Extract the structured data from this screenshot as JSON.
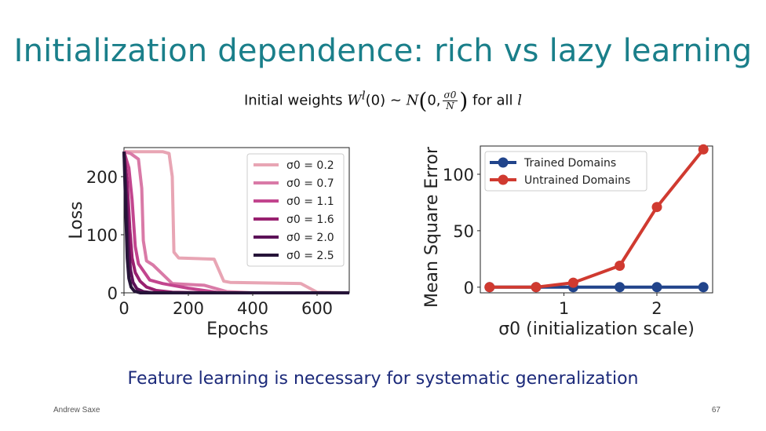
{
  "slide": {
    "title": "Initialization dependence: rich vs lazy learning",
    "formula_prefix": "Initial weights ",
    "formula_W": "W",
    "formula_sup": "l",
    "formula_arg": "(0) ~ ",
    "formula_N": "N",
    "formula_frac_num": "σ0",
    "formula_frac_den": "N",
    "formula_suffix": " for all ",
    "formula_l": "l",
    "subtitle": "Feature learning is necessary for systematic generalization",
    "author": "Andrew Saxe",
    "page_number": "67"
  },
  "chart_data": [
    {
      "type": "line",
      "xlabel": "Epochs",
      "ylabel": "Loss",
      "xlim": [
        0,
        700
      ],
      "ylim": [
        0,
        250
      ],
      "xticks": [
        "0",
        "200",
        "400",
        "600"
      ],
      "yticks": [
        "0",
        "100",
        "200"
      ],
      "legend_position": "top-right",
      "series": [
        {
          "name": "σ0 = 0.2",
          "color": "#e8a5b4",
          "x": [
            0,
            40,
            120,
            140,
            150,
            155,
            170,
            280,
            310,
            330,
            550,
            600,
            700
          ],
          "y": [
            243,
            243,
            243,
            240,
            200,
            70,
            60,
            58,
            20,
            18,
            16,
            1,
            0
          ]
        },
        {
          "name": "σ0 = 0.7",
          "color": "#d97aa7",
          "x": [
            0,
            20,
            45,
            55,
            60,
            70,
            90,
            120,
            150,
            250,
            320,
            400,
            700
          ],
          "y": [
            243,
            240,
            230,
            180,
            90,
            55,
            48,
            32,
            16,
            13,
            2,
            0,
            0
          ]
        },
        {
          "name": "σ0 = 1.1",
          "color": "#c2458e",
          "x": [
            0,
            15,
            25,
            35,
            45,
            60,
            80,
            120,
            200,
            300,
            700
          ],
          "y": [
            243,
            215,
            160,
            80,
            50,
            38,
            22,
            16,
            8,
            0,
            0
          ]
        },
        {
          "name": "σ0 = 1.6",
          "color": "#98206f",
          "x": [
            0,
            10,
            18,
            25,
            35,
            50,
            70,
            100,
            150,
            250,
            700
          ],
          "y": [
            243,
            190,
            110,
            60,
            35,
            20,
            10,
            4,
            1,
            0,
            0
          ]
        },
        {
          "name": "σ0 = 2.0",
          "color": "#5c1258",
          "x": [
            0,
            8,
            14,
            20,
            28,
            40,
            60,
            90,
            150,
            700
          ],
          "y": [
            243,
            160,
            80,
            40,
            18,
            7,
            2,
            0,
            0,
            0
          ]
        },
        {
          "name": "σ0 = 2.5",
          "color": "#261438",
          "x": [
            0,
            6,
            10,
            15,
            22,
            32,
            50,
            80,
            700
          ],
          "y": [
            243,
            130,
            60,
            25,
            10,
            3,
            0,
            0,
            0
          ]
        }
      ]
    },
    {
      "type": "line",
      "xlabel": "σ0 (initialization scale)",
      "ylabel": "Mean Square Error",
      "xlim": [
        0.1,
        2.6
      ],
      "ylim": [
        -5,
        125
      ],
      "xticks": [
        "1",
        "2"
      ],
      "yticks": [
        "0",
        "50",
        "100"
      ],
      "legend_position": "top-left",
      "series": [
        {
          "name": "Trained Domains",
          "color": "#21448b",
          "x": [
            0.2,
            0.7,
            1.1,
            1.6,
            2.0,
            2.5
          ],
          "y": [
            0,
            0,
            0,
            0,
            0,
            0
          ]
        },
        {
          "name": "Untrained Domains",
          "color": "#d03a30",
          "x": [
            0.2,
            0.7,
            1.1,
            1.6,
            2.0,
            2.5
          ],
          "y": [
            0,
            0,
            4,
            19,
            71,
            122
          ]
        }
      ]
    }
  ]
}
